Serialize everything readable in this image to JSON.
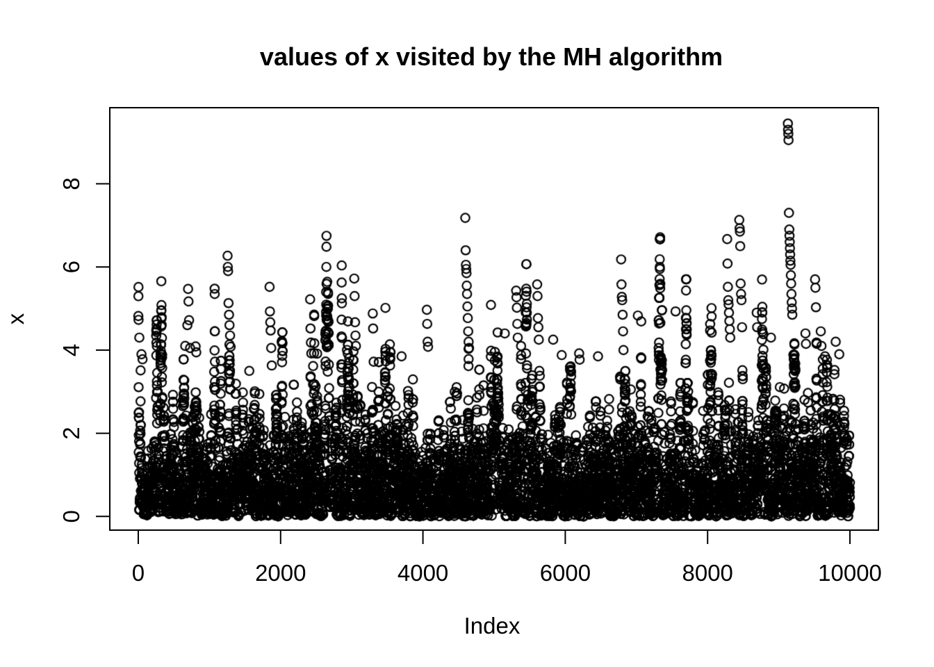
{
  "page": {
    "background": "#ffffff"
  },
  "chart_data": {
    "type": "scatter",
    "title": "values of x visited by the MH algorithm",
    "xlabel": "Index",
    "ylabel": "x",
    "x_ticks": [
      0,
      2000,
      4000,
      6000,
      8000,
      10000
    ],
    "y_ticks": [
      0,
      2,
      4,
      6,
      8
    ],
    "xlim": [
      -400,
      10400
    ],
    "ylim": [
      -0.33,
      9.83
    ],
    "n_points": 10000,
    "marker": "open-circle",
    "point_color": "#000000",
    "background_color": "#ffffff",
    "grid": false,
    "legend": null,
    "description": "Trace of a Metropolis-Hastings sampler: 10000 iterations plotted against index; values concentrate between 0 and 2 with an exponential-like tail and occasional excursions, the largest reaching about 9.45 near iteration 9100.",
    "y_max_observed": 9.45,
    "bulk_generator": {
      "seed": 1234567,
      "start": 4.45,
      "proposal_sd": 0.75,
      "target": "Exp(1)"
    },
    "notable_points": [
      [
        15,
        4.3
      ],
      [
        45,
        3.9
      ],
      [
        60,
        3.78
      ],
      [
        660,
        4.1
      ],
      [
        690,
        4.6
      ],
      [
        700,
        5.47
      ],
      [
        706,
        5.17
      ],
      [
        714,
        4.72
      ],
      [
        728,
        4.05
      ],
      [
        1255,
        6.27
      ],
      [
        1258,
        6.0
      ],
      [
        1262,
        5.9
      ],
      [
        1268,
        5.13
      ],
      [
        1275,
        4.85
      ],
      [
        1282,
        4.6
      ],
      [
        1290,
        4.35
      ],
      [
        1298,
        4.08
      ],
      [
        1560,
        3.5
      ],
      [
        1845,
        5.52
      ],
      [
        1850,
        4.93
      ],
      [
        1855,
        4.67
      ],
      [
        1860,
        4.47
      ],
      [
        1868,
        4.05
      ],
      [
        1876,
        3.63
      ],
      [
        2415,
        5.22
      ],
      [
        2420,
        4.52
      ],
      [
        2426,
        4.18
      ],
      [
        2432,
        3.92
      ],
      [
        3035,
        5.72
      ],
      [
        3040,
        5.3
      ],
      [
        3046,
        4.67
      ],
      [
        3052,
        4.35
      ],
      [
        3058,
        4.1
      ],
      [
        3295,
        4.88
      ],
      [
        3300,
        4.52
      ],
      [
        3308,
        3.72
      ],
      [
        3545,
        3.95
      ],
      [
        3700,
        3.85
      ],
      [
        4055,
        4.97
      ],
      [
        4060,
        4.63
      ],
      [
        4066,
        4.2
      ],
      [
        4072,
        4.08
      ],
      [
        4595,
        7.18
      ],
      [
        4600,
        6.4
      ],
      [
        4604,
        6.05
      ],
      [
        4608,
        5.95
      ],
      [
        4612,
        5.85
      ],
      [
        4616,
        5.55
      ],
      [
        4620,
        5.35
      ],
      [
        4625,
        5.05
      ],
      [
        4630,
        4.77
      ],
      [
        4636,
        4.45
      ],
      [
        4642,
        4.2
      ],
      [
        4648,
        4.05
      ],
      [
        5150,
        4.4
      ],
      [
        5310,
        5.43
      ],
      [
        5315,
        5.27
      ],
      [
        5320,
        5.02
      ],
      [
        5326,
        4.63
      ],
      [
        5332,
        4.3
      ],
      [
        5605,
        5.58
      ],
      [
        5610,
        5.3
      ],
      [
        5616,
        4.77
      ],
      [
        5622,
        4.55
      ],
      [
        5628,
        4.25
      ],
      [
        5830,
        4.25
      ],
      [
        5950,
        3.88
      ],
      [
        6195,
        3.92
      ],
      [
        6202,
        3.77
      ],
      [
        6460,
        3.85
      ],
      [
        6785,
        6.18
      ],
      [
        6790,
        5.58
      ],
      [
        6795,
        5.28
      ],
      [
        6800,
        5.2
      ],
      [
        6806,
        4.85
      ],
      [
        6812,
        4.45
      ],
      [
        6818,
        4.0
      ],
      [
        7020,
        4.83
      ],
      [
        7550,
        4.93
      ],
      [
        8275,
        6.67
      ],
      [
        8280,
        6.08
      ],
      [
        8285,
        5.52
      ],
      [
        8290,
        5.2
      ],
      [
        8295,
        5.1
      ],
      [
        8300,
        4.9
      ],
      [
        8306,
        4.7
      ],
      [
        8312,
        4.5
      ],
      [
        8318,
        4.3
      ],
      [
        8445,
        7.13
      ],
      [
        8450,
        6.93
      ],
      [
        8454,
        6.85
      ],
      [
        8458,
        6.5
      ],
      [
        8464,
        5.6
      ],
      [
        8470,
        5.35
      ],
      [
        8476,
        5.2
      ],
      [
        8484,
        4.55
      ],
      [
        8690,
        4.9
      ],
      [
        8696,
        4.55
      ],
      [
        8890,
        4.3
      ],
      [
        9128,
        9.45
      ],
      [
        9131,
        9.3
      ],
      [
        9134,
        9.2
      ],
      [
        9137,
        9.05
      ],
      [
        9143,
        7.3
      ],
      [
        9148,
        6.9
      ],
      [
        9151,
        6.75
      ],
      [
        9154,
        6.6
      ],
      [
        9157,
        6.45
      ],
      [
        9160,
        6.3
      ],
      [
        9163,
        6.15
      ],
      [
        9166,
        6.05
      ],
      [
        9170,
        5.8
      ],
      [
        9174,
        5.6
      ],
      [
        9178,
        5.35
      ],
      [
        9182,
        5.15
      ],
      [
        9186,
        5.0
      ],
      [
        9190,
        4.85
      ],
      [
        9375,
        4.4
      ],
      [
        9382,
        4.15
      ],
      [
        9510,
        5.7
      ],
      [
        9515,
        5.5
      ],
      [
        9522,
        5.03
      ],
      [
        9590,
        4.45
      ],
      [
        9600,
        4.1
      ],
      [
        9650,
        3.85
      ],
      [
        9800,
        4.2
      ],
      [
        9850,
        3.9
      ]
    ]
  }
}
